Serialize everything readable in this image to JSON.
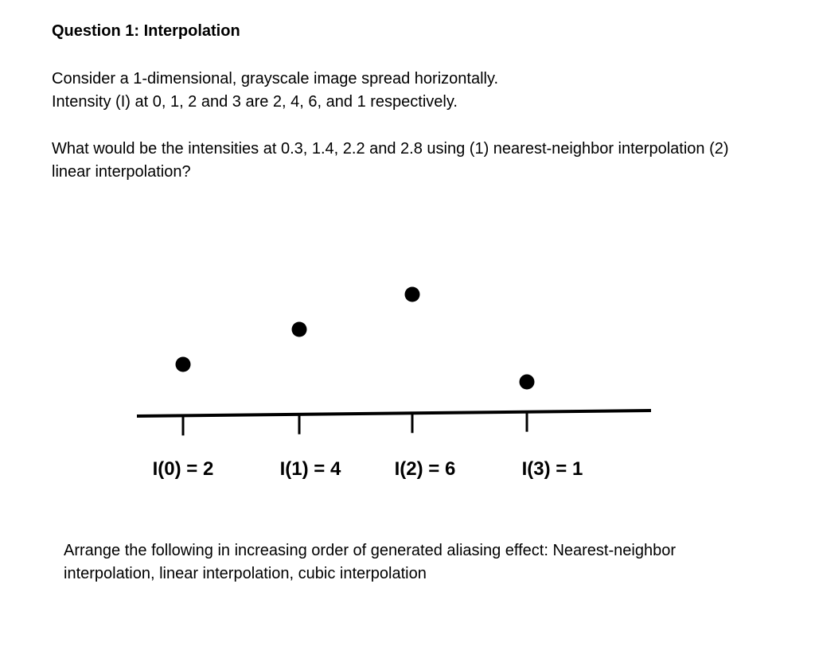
{
  "question": {
    "title": "Question 1: Interpolation",
    "para1_line1": "Consider a 1-dimensional, grayscale image spread horizontally.",
    "para1_line2": "Intensity (I) at 0, 1, 2 and 3 are 2, 4, 6, and 1 respectively.",
    "para2_line1": "What would be the intensities at 0.3, 1.4, 2.2 and 2.8 using (1) nearest-neighbor interpolation (2)",
    "para2_line2": "linear interpolation?"
  },
  "diagram": {
    "points": [
      {
        "x": 0,
        "intensity": 2,
        "label": "I(0) = 2"
      },
      {
        "x": 1,
        "intensity": 4,
        "label": "I(1) = 4"
      },
      {
        "x": 2,
        "intensity": 6,
        "label": "I(2) = 6"
      },
      {
        "x": 3,
        "intensity": 1,
        "label": "I(3) = 1"
      }
    ]
  },
  "followup": {
    "line1": "Arrange the following in increasing order of generated aliasing effect: Nearest-neighbor",
    "line2": "interpolation, linear interpolation, cubic interpolation"
  }
}
